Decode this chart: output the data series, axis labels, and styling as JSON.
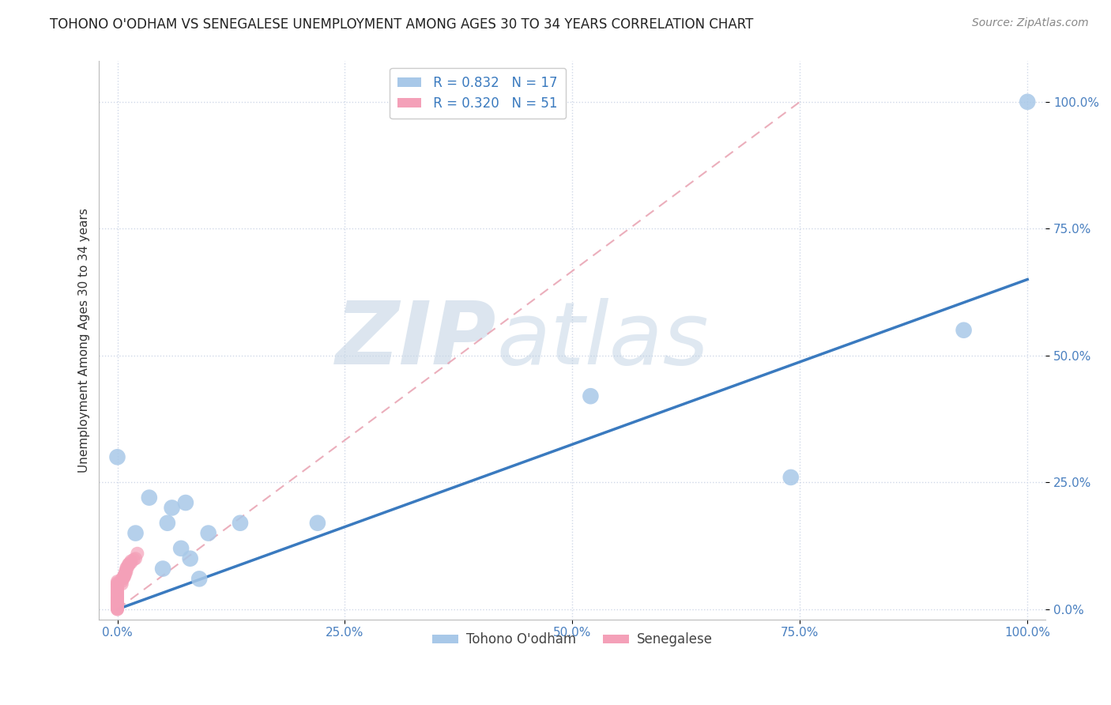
{
  "title": "TOHONO O'ODHAM VS SENEGALESE UNEMPLOYMENT AMONG AGES 30 TO 34 YEARS CORRELATION CHART",
  "source": "Source: ZipAtlas.com",
  "ylabel": "Unemployment Among Ages 30 to 34 years",
  "xlim": [
    -0.02,
    1.02
  ],
  "ylim": [
    -0.02,
    1.08
  ],
  "xtick_labels": [
    "0.0%",
    "25.0%",
    "50.0%",
    "75.0%",
    "100.0%"
  ],
  "xtick_vals": [
    0,
    0.25,
    0.5,
    0.75,
    1.0
  ],
  "ytick_labels": [
    "0.0%",
    "25.0%",
    "50.0%",
    "75.0%",
    "100.0%"
  ],
  "ytick_vals": [
    0,
    0.25,
    0.5,
    0.75,
    1.0
  ],
  "blue_R": "0.832",
  "blue_N": "17",
  "pink_R": "0.320",
  "pink_N": "51",
  "blue_color": "#a8c8e8",
  "pink_color": "#f4a0b8",
  "blue_line_color": "#3a7abf",
  "pink_line_color": "#e8a0b0",
  "blue_scatter": {
    "x": [
      0.0,
      0.02,
      0.035,
      0.05,
      0.055,
      0.06,
      0.07,
      0.075,
      0.08,
      0.09,
      0.1,
      0.135,
      0.22,
      0.52,
      0.74,
      0.93,
      1.0
    ],
    "y": [
      0.3,
      0.15,
      0.22,
      0.08,
      0.17,
      0.2,
      0.12,
      0.21,
      0.1,
      0.06,
      0.15,
      0.17,
      0.17,
      0.42,
      0.26,
      0.55,
      1.0
    ]
  },
  "pink_scatter": {
    "x": [
      0.0,
      0.0,
      0.0,
      0.0,
      0.0,
      0.0,
      0.0,
      0.0,
      0.0,
      0.0,
      0.0,
      0.0,
      0.0,
      0.0,
      0.0,
      0.0,
      0.0,
      0.0,
      0.0,
      0.0,
      0.0,
      0.0,
      0.0,
      0.0,
      0.0,
      0.0,
      0.0,
      0.0,
      0.0,
      0.0,
      0.005,
      0.005,
      0.005,
      0.006,
      0.007,
      0.007,
      0.008,
      0.008,
      0.009,
      0.009,
      0.01,
      0.01,
      0.01,
      0.012,
      0.012,
      0.013,
      0.015,
      0.015,
      0.018,
      0.02,
      0.022
    ],
    "y": [
      0.0,
      0.0,
      0.002,
      0.003,
      0.005,
      0.005,
      0.007,
      0.008,
      0.01,
      0.01,
      0.012,
      0.013,
      0.015,
      0.015,
      0.018,
      0.02,
      0.022,
      0.025,
      0.027,
      0.03,
      0.032,
      0.035,
      0.037,
      0.04,
      0.042,
      0.045,
      0.047,
      0.05,
      0.052,
      0.055,
      0.05,
      0.055,
      0.06,
      0.06,
      0.062,
      0.065,
      0.065,
      0.07,
      0.07,
      0.075,
      0.075,
      0.08,
      0.082,
      0.085,
      0.088,
      0.09,
      0.092,
      0.095,
      0.098,
      0.1,
      0.11
    ]
  },
  "blue_trendline_x": [
    0.0,
    1.0
  ],
  "blue_trendline_y": [
    0.0,
    0.65
  ],
  "pink_trendline_x": [
    0.0,
    0.75
  ],
  "pink_trendline_y": [
    0.0,
    1.0
  ],
  "watermark_zip": "ZIP",
  "watermark_atlas": "atlas",
  "background_color": "#ffffff",
  "grid_color": "#d0d8e8",
  "title_fontsize": 12,
  "axis_label_fontsize": 11,
  "tick_fontsize": 11,
  "legend_fontsize": 12,
  "source_fontsize": 10
}
